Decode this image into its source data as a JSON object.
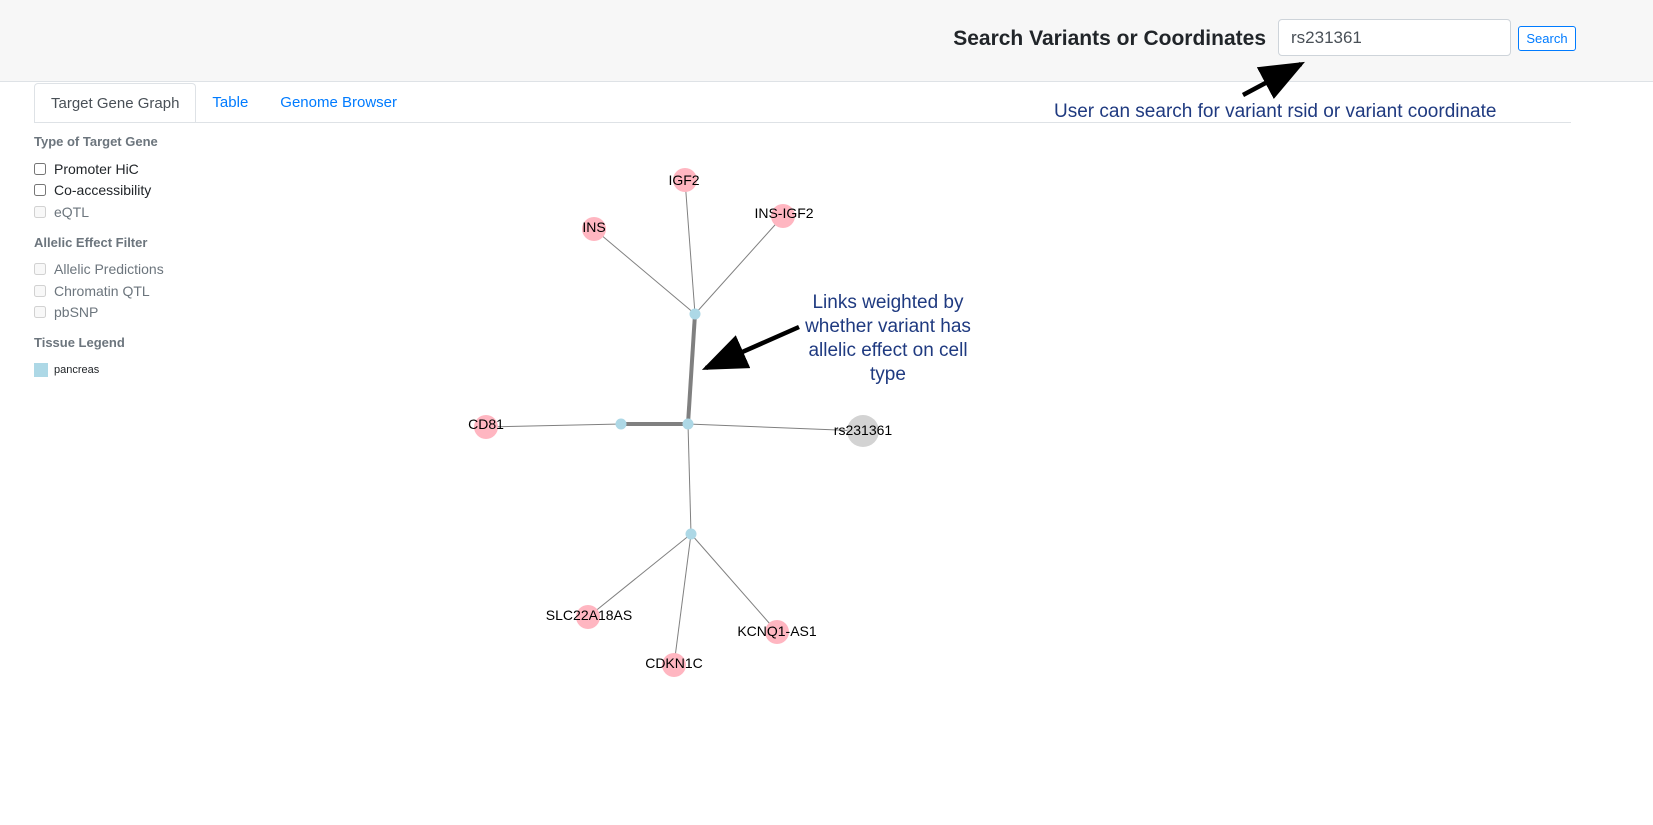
{
  "header": {
    "search_label": "Search Variants or Coordinates",
    "search_value": "rs231361",
    "search_button": "Search"
  },
  "tabs": [
    {
      "label": "Target Gene Graph",
      "active": true
    },
    {
      "label": "Table",
      "active": false
    },
    {
      "label": "Genome Browser",
      "active": false
    }
  ],
  "sidebar": {
    "target_gene_title": "Type of Target Gene",
    "target_gene_options": [
      {
        "label": "Promoter HiC",
        "checked": false,
        "disabled": false
      },
      {
        "label": "Co-accessibility",
        "checked": false,
        "disabled": false
      },
      {
        "label": "eQTL",
        "checked": false,
        "disabled": true
      }
    ],
    "allelic_title": "Allelic Effect Filter",
    "allelic_options": [
      {
        "label": "Allelic Predictions",
        "checked": false,
        "disabled": true
      },
      {
        "label": "Chromatin QTL",
        "checked": false,
        "disabled": true
      },
      {
        "label": "pbSNP",
        "checked": false,
        "disabled": true
      }
    ],
    "legend_title": "Tissue Legend",
    "legend_items": [
      {
        "label": "pancreas",
        "color": "#add8e6"
      }
    ]
  },
  "graph": {
    "gene_color": "#ffb6c1",
    "variant_color": "#d3d3d3",
    "hub_color": "#add8e6",
    "edge_color": "#808080",
    "genes": [
      "IGF2",
      "INS",
      "INS-IGF2",
      "CD81",
      "SLC22A18AS",
      "CDKN1C",
      "KCNQ1-AS1"
    ],
    "variant": "rs231361"
  },
  "annotations": {
    "search_hint": "User can search for variant rsid or variant coordinate",
    "links_hint": "Links weighted by whether variant has allelic effect on cell type"
  }
}
